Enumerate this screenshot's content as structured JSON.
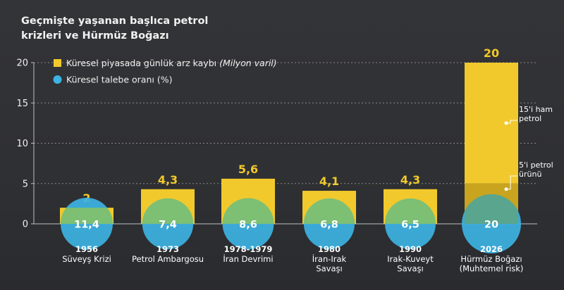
{
  "title_line1": "Geçmişte yaşanan başlıca petrol",
  "title_line2": "krizleri ve Hürmüz Boğazı",
  "colors": {
    "background": "#2f3033",
    "bar": "#f1c92c",
    "bar_lower_2026": "#c9a41f",
    "circle": "#3db3e3",
    "circle_overlap": "#7dbf73",
    "value_label": "#f1c92c",
    "grid": "#8a8a8a"
  },
  "chart_data": {
    "type": "bar",
    "ylim": [
      0,
      20
    ],
    "yticks": [
      "0",
      "5",
      "10",
      "15",
      "20"
    ],
    "grid": true,
    "legend_position": "top-left",
    "series": [
      {
        "name": "Küresel piyasada günlük arz kaybı",
        "unit": "(Milyon varil)"
      },
      {
        "name": "Küresel talebe oranı (%)"
      }
    ],
    "categories": [
      {
        "year": "1956",
        "name": "Süveyş Krizi"
      },
      {
        "year": "1973",
        "name": "Petrol Ambargosu"
      },
      {
        "year": "1978-1979",
        "name": "İran Devrimi"
      },
      {
        "year": "1980",
        "name": "İran-Irak Savaşı"
      },
      {
        "year": "1990",
        "name": "Irak-Kuveyt Savaşı"
      },
      {
        "year": "2026",
        "name": "Hürmüz Boğazı (Muhtemel risk)"
      }
    ],
    "category_name_lines": [
      [
        "Süveyş Krizi"
      ],
      [
        "Petrol Ambargosu"
      ],
      [
        "İran Devrimi"
      ],
      [
        "İran-Irak",
        "Savaşı"
      ],
      [
        "Irak-Kuveyt",
        "Savaşı"
      ],
      [
        "Hürmüz Boğazı",
        "(Muhtemel risk)"
      ]
    ],
    "values": [
      2,
      4.3,
      5.6,
      4.1,
      4.3,
      20
    ],
    "value_labels": [
      "2",
      "4,3",
      "5,6",
      "4,1",
      "4,3",
      "20"
    ],
    "pct_values": [
      11.4,
      7.4,
      8.6,
      6.8,
      6.5,
      20
    ],
    "pct_labels": [
      "11,4",
      "7,4",
      "8,6",
      "6,8",
      "6,5",
      "20"
    ],
    "annotations": [
      {
        "text_lines": [
          "15'i ham",
          "petrol"
        ],
        "at_value": 12.5
      },
      {
        "text_lines": [
          "5'i petrol",
          "ürünü"
        ],
        "at_value": 4.3
      }
    ],
    "split_2026": {
      "upper": 15,
      "lower": 5
    }
  }
}
